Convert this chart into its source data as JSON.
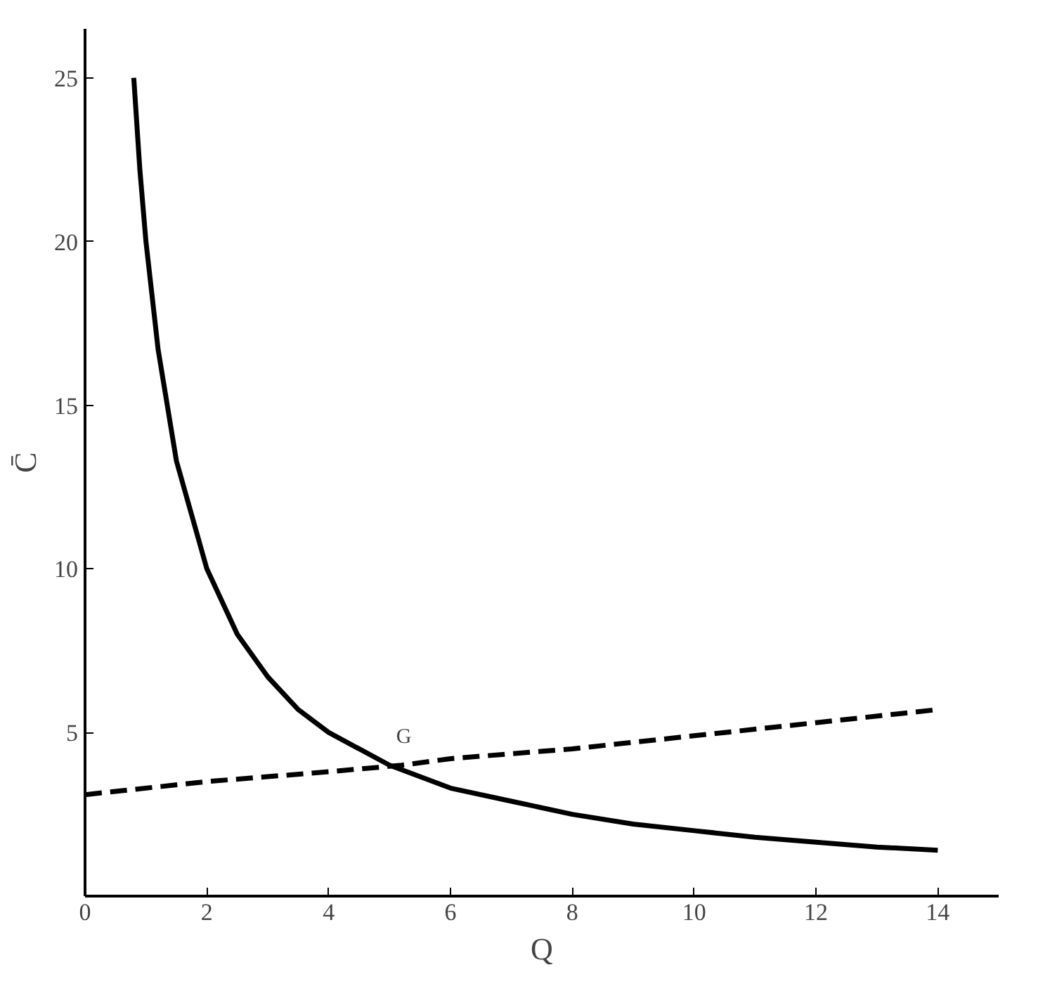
{
  "chart_data": {
    "type": "line",
    "xlabel": "Q",
    "ylabel": "C̄",
    "xlim": [
      0,
      15
    ],
    "ylim": [
      0,
      26.5
    ],
    "xticks": [
      0,
      2,
      4,
      6,
      8,
      10,
      12,
      14
    ],
    "yticks": [
      5,
      10,
      15,
      20,
      25
    ],
    "grid": false,
    "marker": "none",
    "series": [
      {
        "color": "#000000",
        "line_style": "solid",
        "x": [
          0.8,
          0.9,
          1,
          1.2,
          1.5,
          2,
          2.5,
          3,
          3.5,
          4,
          5,
          6,
          7,
          8,
          9,
          10,
          11,
          12,
          13,
          14
        ],
        "values": [
          25,
          22.2,
          20,
          16.7,
          13.3,
          10,
          8,
          6.7,
          5.7,
          5,
          4,
          3.3,
          2.9,
          2.5,
          2.2,
          2,
          1.8,
          1.65,
          1.5,
          1.4
        ]
      },
      {
        "color": "#000000",
        "line_style": "dashed",
        "x": [
          0,
          2,
          4,
          5.2,
          6,
          8,
          10,
          12,
          14
        ],
        "values": [
          3.1,
          3.5,
          3.8,
          4.0,
          4.2,
          4.5,
          4.9,
          5.3,
          5.7
        ]
      }
    ],
    "annotations": [
      {
        "text": "G",
        "x": 5.2,
        "y": 4.0
      }
    ]
  }
}
